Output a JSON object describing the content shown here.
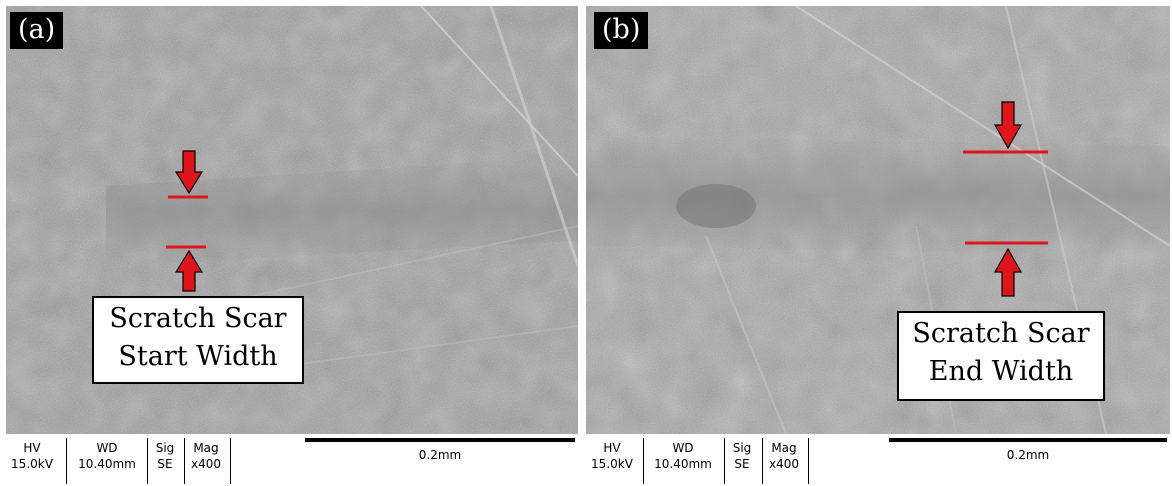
{
  "panels": [
    {
      "label": "(a)",
      "callout": {
        "line1": "Scratch Scar",
        "line2": "Start Width"
      },
      "footer": {
        "hv_label": "HV",
        "hv_value": "15.0kV",
        "wd_label": "WD",
        "wd_value": "10.40mm",
        "sig_label": "Sig",
        "sig_value": "SE",
        "mag_label": "Mag",
        "mag_value": "x400",
        "scale": "0.2mm"
      }
    },
    {
      "label": "(b)",
      "callout": {
        "line1": "Scratch Scar",
        "line2": "End Width"
      },
      "footer": {
        "hv_label": "HV",
        "hv_value": "15.0kV",
        "wd_label": "WD",
        "wd_value": "10.40mm",
        "sig_label": "Sig",
        "sig_value": "SE",
        "mag_label": "Mag",
        "mag_value": "x400",
        "scale": "0.2mm"
      }
    }
  ],
  "colors": {
    "marker": "#e0141b",
    "marker_outline": "#000000",
    "sem_base": "#9a9a9a"
  }
}
